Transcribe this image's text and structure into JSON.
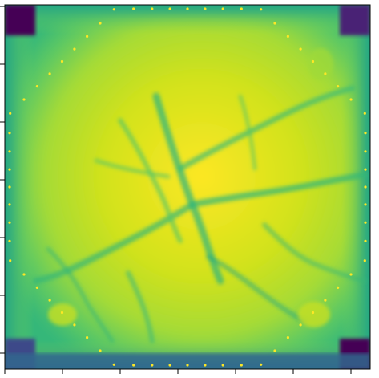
{
  "figure": {
    "kind": "heatmap image with axes, no tick labels shown",
    "colormap": "viridis",
    "colors": {
      "frame": "#000000",
      "low": "#440154",
      "mid": "#21918c",
      "high": "#fde725",
      "ring_dots": "#fde725"
    },
    "x_ticks_count": 6,
    "y_ticks_count": 6,
    "ring": {
      "dots": 64
    }
  }
}
